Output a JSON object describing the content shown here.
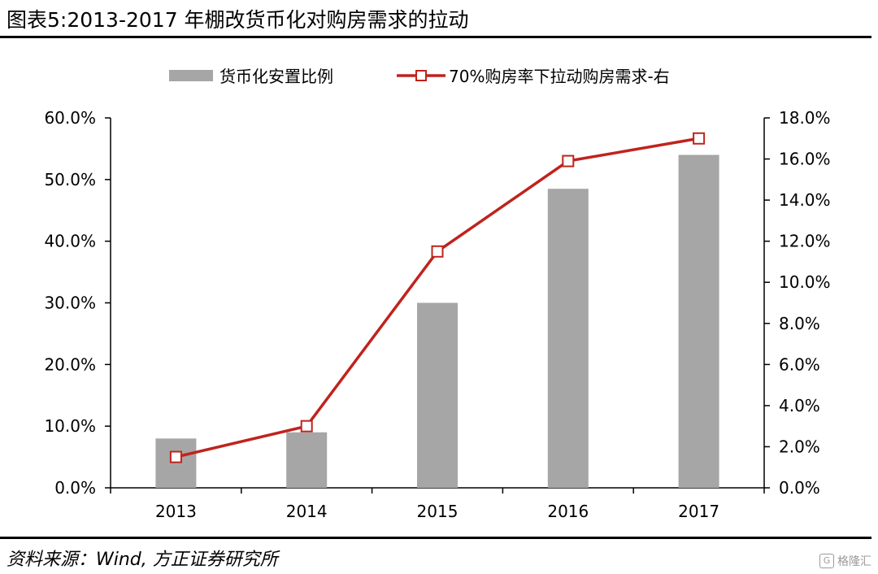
{
  "header": {
    "title": "图表5:2013-2017 年棚改货币化对购房需求的拉动"
  },
  "footer": {
    "source": "资料来源：Wind, 方正证券研究所",
    "watermark": "格隆汇"
  },
  "colors": {
    "bar": "#a6a6a6",
    "line": "#c0231d",
    "marker_fill": "#ffffff",
    "axis": "#000000"
  },
  "chart_data": {
    "type": "bar",
    "categories": [
      "2013",
      "2014",
      "2015",
      "2016",
      "2017"
    ],
    "series": [
      {
        "name": "货币化安置比例",
        "type": "bar",
        "axis": "left",
        "values": [
          8.0,
          9.0,
          30.0,
          48.5,
          54.0
        ]
      },
      {
        "name": "70%购房率下拉动购房需求-右",
        "type": "line",
        "axis": "right",
        "values": [
          1.5,
          3.0,
          11.5,
          15.9,
          17.0
        ]
      }
    ],
    "y_left": {
      "ylim": [
        0,
        60
      ],
      "ticks": [
        "0.0%",
        "10.0%",
        "20.0%",
        "30.0%",
        "40.0%",
        "50.0%",
        "60.0%"
      ]
    },
    "y_right": {
      "ylim": [
        0,
        18
      ],
      "ticks": [
        "0.0%",
        "2.0%",
        "4.0%",
        "6.0%",
        "8.0%",
        "10.0%",
        "12.0%",
        "14.0%",
        "16.0%",
        "18.0%"
      ]
    },
    "grid": false,
    "legend": "top"
  }
}
